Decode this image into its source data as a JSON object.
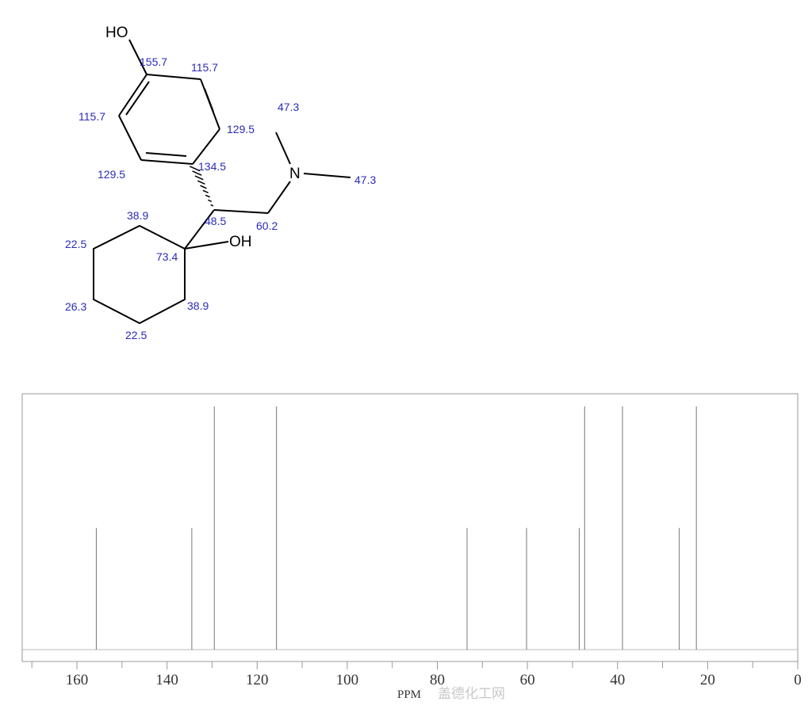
{
  "structure": {
    "atoms": {
      "phenol_oh": "HO",
      "nitrogen": "N",
      "alcohol_oh": "OH"
    },
    "shift_labels": [
      "155.7",
      "115.7",
      "115.7",
      "129.5",
      "134.5",
      "129.5",
      "47.3",
      "47.3",
      "48.5",
      "60.2",
      "38.9",
      "22.5",
      "73.4",
      "26.3",
      "38.9",
      "22.5"
    ]
  },
  "watermark": "盖德化工网",
  "chart_data": {
    "type": "bar",
    "subtype": "nmr-stick-spectrum",
    "xlabel": "PPM",
    "ylabel": "",
    "xlim": [
      172,
      0
    ],
    "x_reversed": true,
    "xticks": [
      160,
      140,
      120,
      100,
      80,
      60,
      40,
      20,
      0
    ],
    "xtick_labels": [
      "160",
      "140",
      "120",
      "100",
      "80",
      "60",
      "40",
      "20",
      "0"
    ],
    "minor_ticks": [
      170,
      150,
      130,
      110,
      90,
      70,
      50,
      30,
      10
    ],
    "grid": false,
    "peaks": [
      {
        "ppm": 155.7,
        "intensity": 0.5
      },
      {
        "ppm": 134.5,
        "intensity": 0.5
      },
      {
        "ppm": 129.5,
        "intensity": 1.0
      },
      {
        "ppm": 115.7,
        "intensity": 1.0
      },
      {
        "ppm": 73.4,
        "intensity": 0.5
      },
      {
        "ppm": 60.2,
        "intensity": 0.5
      },
      {
        "ppm": 48.5,
        "intensity": 0.5
      },
      {
        "ppm": 47.3,
        "intensity": 1.0
      },
      {
        "ppm": 38.9,
        "intensity": 1.0
      },
      {
        "ppm": 26.3,
        "intensity": 0.5
      },
      {
        "ppm": 22.5,
        "intensity": 1.0
      }
    ],
    "colors": {
      "peak": "#777777",
      "frame": "#999999",
      "shift_label": "#2b2bb8"
    }
  }
}
